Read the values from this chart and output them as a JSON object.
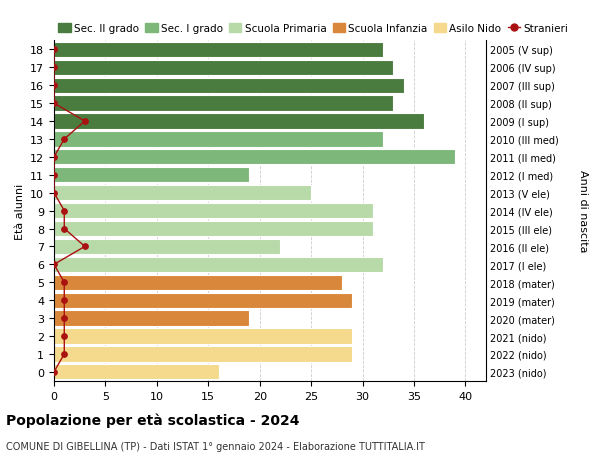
{
  "ages": [
    18,
    17,
    16,
    15,
    14,
    13,
    12,
    11,
    10,
    9,
    8,
    7,
    6,
    5,
    4,
    3,
    2,
    1,
    0
  ],
  "bar_values": [
    32,
    33,
    34,
    33,
    36,
    32,
    39,
    19,
    25,
    31,
    31,
    22,
    32,
    28,
    29,
    19,
    29,
    29,
    16
  ],
  "bar_colors": [
    "#4a7c3f",
    "#4a7c3f",
    "#4a7c3f",
    "#4a7c3f",
    "#4a7c3f",
    "#7db87a",
    "#7db87a",
    "#7db87a",
    "#b8d9a8",
    "#b8d9a8",
    "#b8d9a8",
    "#b8d9a8",
    "#b8d9a8",
    "#d9873a",
    "#d9873a",
    "#d9873a",
    "#f5d98c",
    "#f5d98c",
    "#f5d98c"
  ],
  "stranieri_values": [
    0,
    0,
    0,
    0,
    3,
    1,
    0,
    0,
    0,
    1,
    1,
    3,
    0,
    1,
    1,
    1,
    1,
    1,
    0
  ],
  "right_labels": [
    "2005 (V sup)",
    "2006 (IV sup)",
    "2007 (III sup)",
    "2008 (II sup)",
    "2009 (I sup)",
    "2010 (III med)",
    "2011 (II med)",
    "2012 (I med)",
    "2013 (V ele)",
    "2014 (IV ele)",
    "2015 (III ele)",
    "2016 (II ele)",
    "2017 (I ele)",
    "2018 (mater)",
    "2019 (mater)",
    "2020 (mater)",
    "2021 (nido)",
    "2022 (nido)",
    "2023 (nido)"
  ],
  "color_sec2": "#4a7c3f",
  "color_sec1": "#7db87a",
  "color_prim": "#b8d9a8",
  "color_infanzia": "#d9873a",
  "color_nido": "#f5d98c",
  "color_stranieri": "#aa1111",
  "legend_labels": [
    "Sec. II grado",
    "Sec. I grado",
    "Scuola Primaria",
    "Scuola Infanzia",
    "Asilo Nido",
    "Stranieri"
  ],
  "title": "Popolazione per età scolastica - 2024",
  "subtitle": "COMUNE DI GIBELLINA (TP) - Dati ISTAT 1° gennaio 2024 - Elaborazione TUTTITALIA.IT",
  "ylabel_left": "Età alunni",
  "ylabel_right": "Anni di nascita",
  "xlim": [
    0,
    42
  ],
  "xticks": [
    0,
    5,
    10,
    15,
    20,
    25,
    30,
    35,
    40
  ],
  "bg_color": "#ffffff",
  "grid_color": "#cccccc"
}
